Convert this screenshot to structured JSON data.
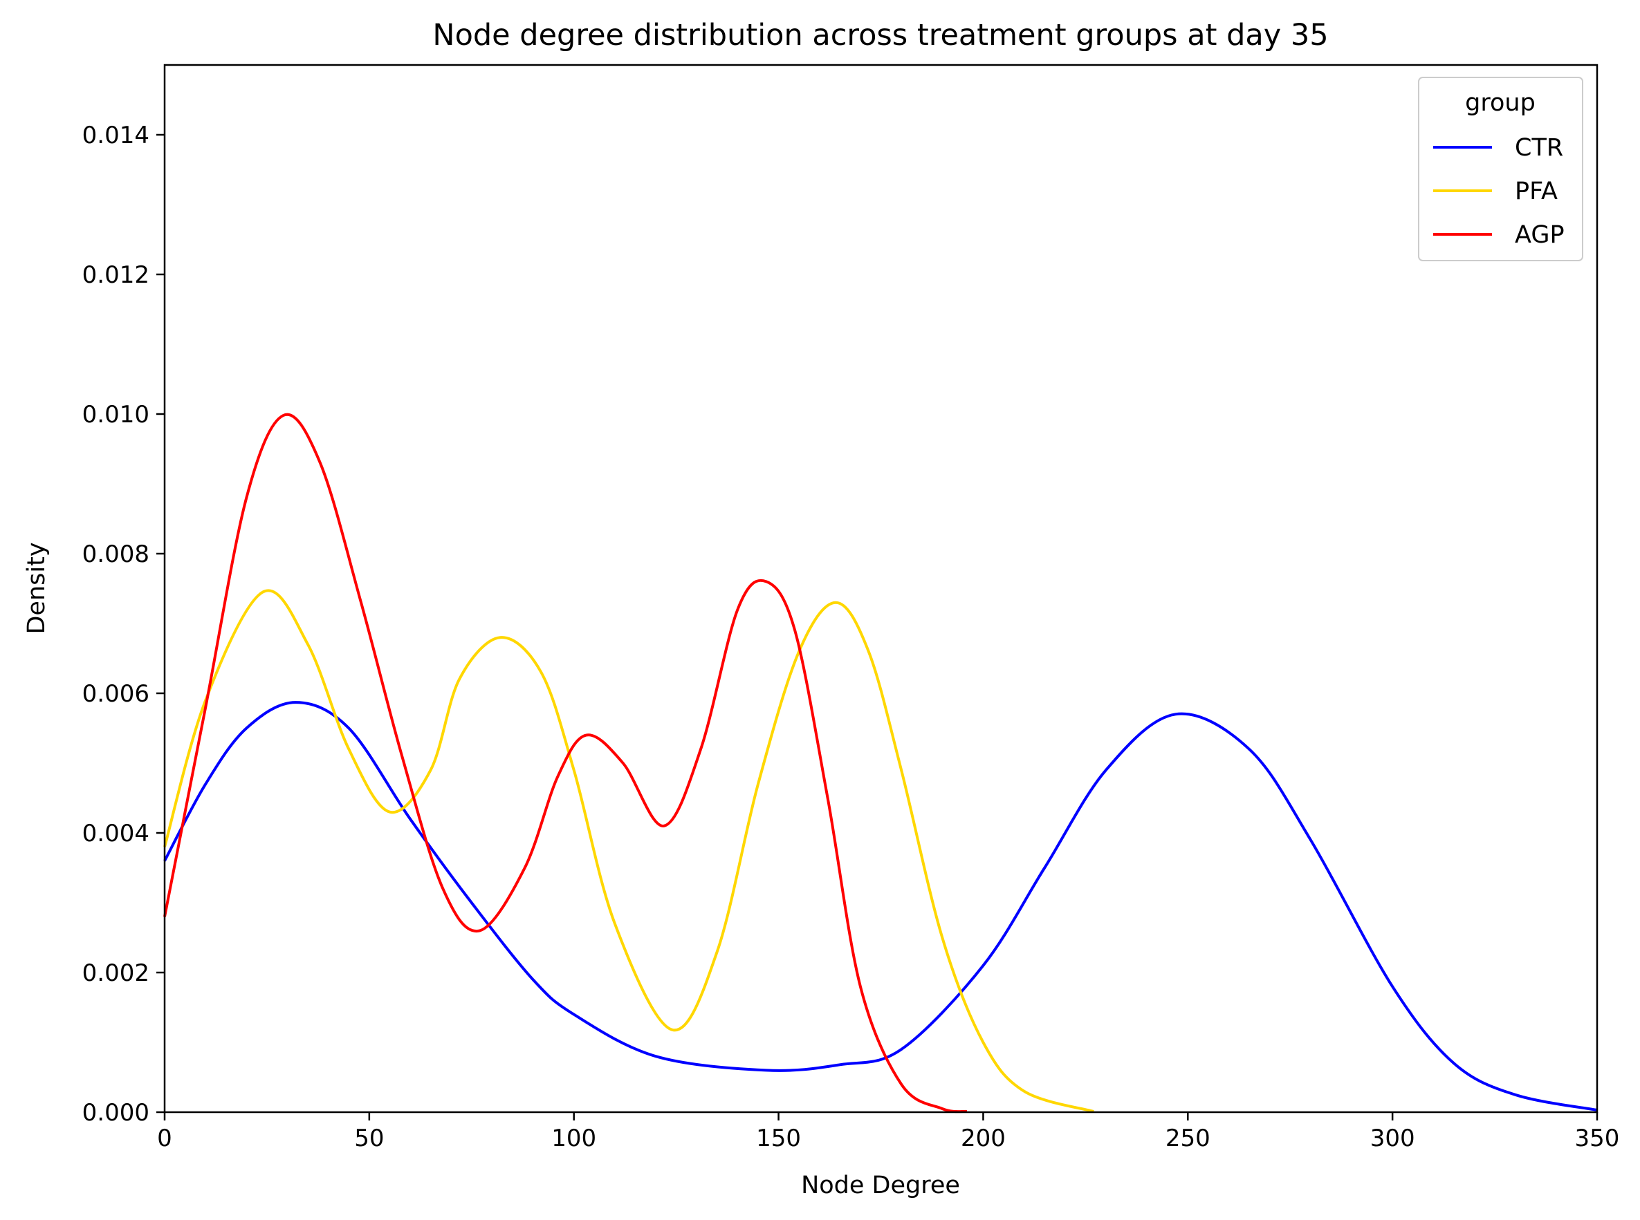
{
  "chart_data": {
    "type": "line",
    "title": "Node degree distribution across treatment groups at day 35",
    "xlabel": "Node Degree",
    "ylabel": "Density",
    "xlim": [
      0,
      350
    ],
    "ylim": [
      0,
      0.015
    ],
    "xticks": [
      0,
      50,
      100,
      150,
      200,
      250,
      300,
      350
    ],
    "xtick_labels": [
      "0",
      "50",
      "100",
      "150",
      "200",
      "250",
      "300",
      "350"
    ],
    "yticks": [
      0,
      0.002,
      0.004,
      0.006,
      0.008,
      0.01,
      0.012,
      0.014
    ],
    "ytick_labels": [
      "0.000",
      "0.002",
      "0.004",
      "0.006",
      "0.008",
      "0.010",
      "0.012",
      "0.014"
    ],
    "grid": false,
    "legend": {
      "title": "group",
      "position": "top-right"
    },
    "series": [
      {
        "name": "CTR",
        "color": "#0000ff",
        "x": [
          0,
          10,
          20,
          32,
          45,
          60,
          75,
          90,
          100,
          120,
          147,
          165,
          180,
          200,
          215,
          230,
          247,
          265,
          280,
          300,
          315,
          330,
          350
        ],
        "y": [
          0.0036,
          0.0047,
          0.0055,
          0.00587,
          0.0055,
          0.0042,
          0.003,
          0.0019,
          0.0014,
          0.0008,
          0.0006,
          0.00068,
          0.0009,
          0.0021,
          0.0035,
          0.0049,
          0.0057,
          0.0052,
          0.0039,
          0.0018,
          0.0007,
          0.00025,
          3e-05
        ]
      },
      {
        "name": "PFA",
        "color": "#ffd700",
        "x": [
          0,
          10,
          24,
          35,
          45,
          55,
          65,
          72,
          82,
          92,
          100,
          110,
          124,
          135,
          145,
          155,
          164,
          172,
          180,
          190,
          200,
          210,
          227
        ],
        "y": [
          0.0038,
          0.0059,
          0.00745,
          0.0067,
          0.0052,
          0.0043,
          0.0049,
          0.0062,
          0.0068,
          0.0063,
          0.0049,
          0.0027,
          0.00118,
          0.0023,
          0.0047,
          0.0066,
          0.0073,
          0.0066,
          0.0049,
          0.0025,
          0.001,
          0.0003,
          1e-05
        ]
      },
      {
        "name": "AGP",
        "color": "#ff0000",
        "x": [
          0,
          10,
          20,
          29,
          38,
          48,
          58,
          68,
          77,
          88,
          96,
          103,
          112,
          122,
          131,
          140,
          147,
          154,
          162,
          170,
          180,
          190,
          196
        ],
        "y": [
          0.0028,
          0.0058,
          0.0088,
          0.00998,
          0.0093,
          0.0073,
          0.0051,
          0.0032,
          0.0026,
          0.0035,
          0.0048,
          0.0054,
          0.005,
          0.0041,
          0.0052,
          0.0072,
          0.0076,
          0.0069,
          0.0045,
          0.0018,
          0.0004,
          5e-05,
          1e-05
        ]
      }
    ]
  }
}
